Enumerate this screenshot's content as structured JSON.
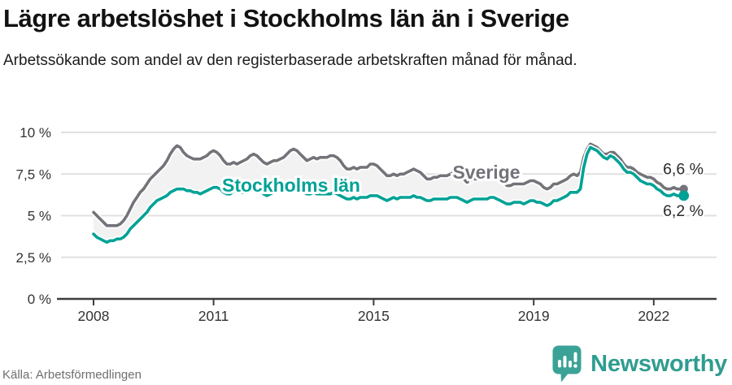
{
  "header": {
    "title": "Lägre arbetslöshet i Stockholms län än i Sverige",
    "subtitle": "Arbetssökande som andel av den registerbaserade arbetskraften månad för månad."
  },
  "chart_data": {
    "type": "line",
    "x_start": "2008-01",
    "x_end": "2022-10",
    "x_step": "1 month",
    "x_ticks": [
      2008,
      2011,
      2015,
      2019,
      2022
    ],
    "x_tick_labels": [
      "2008",
      "2011",
      "2015",
      "2019",
      "2022"
    ],
    "y_ticks": [
      0,
      2.5,
      5,
      7.5,
      10
    ],
    "y_tick_labels": [
      "0 %",
      "2,5 %",
      "5 %",
      "7,5 %",
      "10 %"
    ],
    "ylim": [
      0,
      10.5
    ],
    "grid": "horizontal",
    "legend_position": "inline-labels-on-lines",
    "area_between_series_color": "#f2f2f2",
    "series": [
      {
        "name": "Sverige",
        "color": "#73737a",
        "end_label": "6,6 %",
        "values": [
          5.2,
          5.0,
          4.8,
          4.6,
          4.4,
          4.4,
          4.4,
          4.4,
          4.5,
          4.7,
          5.0,
          5.4,
          5.8,
          6.1,
          6.4,
          6.6,
          6.9,
          7.2,
          7.4,
          7.6,
          7.8,
          8.0,
          8.3,
          8.7,
          9.0,
          9.2,
          9.1,
          8.8,
          8.6,
          8.5,
          8.4,
          8.4,
          8.4,
          8.5,
          8.6,
          8.8,
          8.9,
          8.8,
          8.6,
          8.3,
          8.1,
          8.1,
          8.2,
          8.1,
          8.2,
          8.3,
          8.4,
          8.6,
          8.7,
          8.6,
          8.4,
          8.2,
          8.1,
          8.2,
          8.3,
          8.3,
          8.4,
          8.5,
          8.7,
          8.9,
          9.0,
          8.9,
          8.7,
          8.5,
          8.3,
          8.4,
          8.5,
          8.4,
          8.5,
          8.5,
          8.5,
          8.6,
          8.6,
          8.5,
          8.3,
          8.0,
          7.8,
          7.8,
          7.9,
          7.8,
          7.9,
          7.9,
          7.9,
          8.1,
          8.1,
          8.0,
          7.8,
          7.6,
          7.4,
          7.4,
          7.5,
          7.4,
          7.5,
          7.5,
          7.6,
          7.7,
          7.8,
          7.7,
          7.6,
          7.4,
          7.2,
          7.2,
          7.3,
          7.3,
          7.4,
          7.4,
          7.4,
          7.5,
          7.6,
          7.5,
          7.4,
          7.2,
          7.0,
          7.1,
          7.2,
          7.2,
          7.3,
          7.3,
          7.3,
          7.5,
          7.5,
          7.4,
          7.3,
          7.0,
          6.8,
          6.8,
          6.9,
          6.9,
          6.9,
          6.9,
          7.0,
          7.1,
          7.1,
          7.0,
          6.9,
          6.7,
          6.6,
          6.7,
          6.9,
          6.9,
          7.0,
          7.1,
          7.2,
          7.4,
          7.5,
          7.4,
          7.6,
          8.5,
          9.0,
          9.3,
          9.2,
          9.1,
          8.9,
          8.7,
          8.7,
          8.8,
          8.8,
          8.6,
          8.4,
          8.1,
          7.9,
          7.9,
          7.8,
          7.6,
          7.5,
          7.4,
          7.3,
          7.3,
          7.2,
          7.0,
          6.9,
          6.7,
          6.6,
          6.6,
          6.7,
          6.6,
          6.6,
          6.6
        ]
      },
      {
        "name": "Stockholms län",
        "color": "#00a296",
        "end_label": "6,2 %",
        "values": [
          3.9,
          3.7,
          3.6,
          3.5,
          3.4,
          3.5,
          3.5,
          3.6,
          3.6,
          3.7,
          3.9,
          4.2,
          4.4,
          4.6,
          4.8,
          5.0,
          5.2,
          5.5,
          5.7,
          5.9,
          6.0,
          6.1,
          6.2,
          6.4,
          6.5,
          6.6,
          6.6,
          6.6,
          6.5,
          6.5,
          6.4,
          6.4,
          6.3,
          6.4,
          6.5,
          6.6,
          6.7,
          6.7,
          6.6,
          6.4,
          6.3,
          6.3,
          6.5,
          6.4,
          6.4,
          6.4,
          6.5,
          6.6,
          6.7,
          6.6,
          6.5,
          6.3,
          6.2,
          6.3,
          6.4,
          6.4,
          6.4,
          6.4,
          6.5,
          6.6,
          6.7,
          6.6,
          6.5,
          6.4,
          6.3,
          6.3,
          6.4,
          6.3,
          6.3,
          6.3,
          6.3,
          6.3,
          6.4,
          6.3,
          6.2,
          6.1,
          6.0,
          6.0,
          6.1,
          6.0,
          6.1,
          6.1,
          6.1,
          6.2,
          6.2,
          6.2,
          6.1,
          6.0,
          5.9,
          6.0,
          6.1,
          6.0,
          6.1,
          6.1,
          6.1,
          6.1,
          6.2,
          6.1,
          6.1,
          6.0,
          5.9,
          5.9,
          6.0,
          6.0,
          6.0,
          6.0,
          6.0,
          6.1,
          6.1,
          6.1,
          6.0,
          5.9,
          5.8,
          5.9,
          6.0,
          6.0,
          6.0,
          6.0,
          6.0,
          6.1,
          6.1,
          6.0,
          5.9,
          5.8,
          5.7,
          5.7,
          5.8,
          5.8,
          5.8,
          5.7,
          5.8,
          5.9,
          5.9,
          5.8,
          5.8,
          5.7,
          5.6,
          5.7,
          5.9,
          5.9,
          6.0,
          6.1,
          6.2,
          6.4,
          6.4,
          6.4,
          6.6,
          7.9,
          8.7,
          9.1,
          9.0,
          8.9,
          8.7,
          8.5,
          8.4,
          8.6,
          8.5,
          8.3,
          8.1,
          7.8,
          7.6,
          7.6,
          7.5,
          7.3,
          7.1,
          7.0,
          6.9,
          6.9,
          6.8,
          6.6,
          6.5,
          6.3,
          6.2,
          6.2,
          6.3,
          6.2,
          6.2,
          6.2
        ]
      }
    ]
  },
  "footer": {
    "source": "Källa: Arbetsförmedlingen",
    "logo_text": "Newsworthy"
  },
  "colors": {
    "accent_teal": "#00a296",
    "line_gray": "#73737a",
    "logo_teal": "#3aa296",
    "gridline": "#e0e0e0",
    "axis": "#3d3d3d",
    "tick_label": "#333333",
    "end_label": "#2b2b2b",
    "between_fill": "#f2f2f2"
  }
}
